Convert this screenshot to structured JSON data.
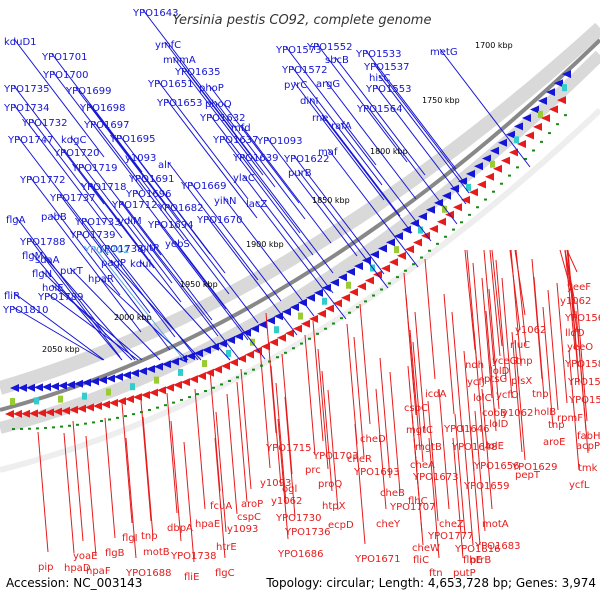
{
  "title": "Yersinia pestis CO92, complete genome",
  "footer": {
    "accession": "Accession: NC_003143",
    "summary": "Topology: circular; Length: 4,653,728 bp; Genes: 3,974"
  },
  "colors": {
    "plus_strand": "#1515d6",
    "minus_strand": "#e61b1b",
    "highlight": "#5aa7e6",
    "backbone": "#888888",
    "gc_dots": "#1a8a1a"
  },
  "ticks": [
    "1700 kbp",
    "1750 kbp",
    "1800 kbp",
    "1850 kbp",
    "1900 kbp",
    "1950 kbp",
    "2000 kbp",
    "2050 kbp"
  ],
  "genes": [
    {
      "name": "YPO1643",
      "strand": "plus"
    },
    {
      "name": "kduD1",
      "strand": "plus"
    },
    {
      "name": "ymfC",
      "strand": "plus"
    },
    {
      "name": "YPO1701",
      "strand": "plus"
    },
    {
      "name": "mnmA",
      "strand": "plus"
    },
    {
      "name": "YPO1573",
      "strand": "plus"
    },
    {
      "name": "YPO1552",
      "strand": "plus"
    },
    {
      "name": "YPO1533",
      "strand": "plus"
    },
    {
      "name": "metG",
      "strand": "plus"
    },
    {
      "name": "sbcB",
      "strand": "plus"
    },
    {
      "name": "YPO1537",
      "strand": "plus"
    },
    {
      "name": "YPO1700",
      "strand": "plus"
    },
    {
      "name": "YPO1635",
      "strand": "plus"
    },
    {
      "name": "YPO1572",
      "strand": "plus"
    },
    {
      "name": "hisC",
      "strand": "plus"
    },
    {
      "name": "YPO1735",
      "strand": "plus"
    },
    {
      "name": "YPO1699",
      "strand": "plus"
    },
    {
      "name": "YPO1651",
      "strand": "plus"
    },
    {
      "name": "phoP",
      "strand": "plus"
    },
    {
      "name": "pyrC",
      "strand": "plus"
    },
    {
      "name": "argG",
      "strand": "plus"
    },
    {
      "name": "YPO1553",
      "strand": "plus"
    },
    {
      "name": "dinI",
      "strand": "plus"
    },
    {
      "name": "YPO1734",
      "strand": "plus"
    },
    {
      "name": "YPO1698",
      "strand": "plus"
    },
    {
      "name": "YPO1653",
      "strand": "plus"
    },
    {
      "name": "phoQ",
      "strand": "plus"
    },
    {
      "name": "YPO1564",
      "strand": "plus"
    },
    {
      "name": "YPO1732",
      "strand": "plus"
    },
    {
      "name": "YPO1697",
      "strand": "plus"
    },
    {
      "name": "YPO1632",
      "strand": "plus"
    },
    {
      "name": "rne",
      "strand": "plus"
    },
    {
      "name": "rafA",
      "strand": "plus"
    },
    {
      "name": "YPO1747",
      "strand": "plus"
    },
    {
      "name": "kdgC",
      "strand": "plus"
    },
    {
      "name": "YPO1695",
      "strand": "plus"
    },
    {
      "name": "mfd",
      "strand": "plus"
    },
    {
      "name": "YPO1637",
      "strand": "plus"
    },
    {
      "name": "YPO1093",
      "strand": "plus"
    },
    {
      "name": "YPO1720",
      "strand": "plus"
    },
    {
      "name": "y1093",
      "strand": "plus"
    },
    {
      "name": "alr",
      "strand": "plus"
    },
    {
      "name": "YPO1639",
      "strand": "plus"
    },
    {
      "name": "YPO1622",
      "strand": "plus"
    },
    {
      "name": "maf",
      "strand": "plus"
    },
    {
      "name": "YPO1719",
      "strand": "plus"
    },
    {
      "name": "purB",
      "strand": "plus"
    },
    {
      "name": "YPO1772",
      "strand": "plus"
    },
    {
      "name": "YPO1718",
      "strand": "plus"
    },
    {
      "name": "YPO1691",
      "strand": "plus"
    },
    {
      "name": "YPO1669",
      "strand": "plus"
    },
    {
      "name": "YPO1737",
      "strand": "plus"
    },
    {
      "name": "YPO1696",
      "strand": "plus"
    },
    {
      "name": "ylaC",
      "strand": "plus"
    },
    {
      "name": "pabB",
      "strand": "plus"
    },
    {
      "name": "YPO1712",
      "strand": "plus"
    },
    {
      "name": "YPO1682",
      "strand": "plus"
    },
    {
      "name": "yihN",
      "strand": "plus"
    },
    {
      "name": "lacZ",
      "strand": "plus"
    },
    {
      "name": "flgA",
      "strand": "plus"
    },
    {
      "name": "YPO1733",
      "strand": "plus"
    },
    {
      "name": "ydiM",
      "strand": "plus"
    },
    {
      "name": "YPO1694",
      "strand": "plus"
    },
    {
      "name": "YPO1670",
      "strand": "plus"
    },
    {
      "name": "YPO1788",
      "strand": "plus"
    },
    {
      "name": "sdaA",
      "strand": "plus"
    },
    {
      "name": "YPO1739",
      "strand": "plus"
    },
    {
      "name": "YPO1702",
      "strand": "plus"
    },
    {
      "name": "YPO1738",
      "strand": "plus"
    },
    {
      "name": "flgM",
      "strand": "plus"
    },
    {
      "name": "gitP",
      "strand": "plus"
    },
    {
      "name": "yebS",
      "strand": "plus"
    },
    {
      "name": "pagP",
      "strand": "plus"
    },
    {
      "name": "kdul",
      "strand": "plus"
    },
    {
      "name": "flgN",
      "strand": "plus"
    },
    {
      "name": "purT",
      "strand": "plus"
    },
    {
      "name": "holE",
      "strand": "plus"
    },
    {
      "name": "hpaR",
      "strand": "plus"
    },
    {
      "name": "fliR",
      "strand": "plus"
    },
    {
      "name": "YPO1789",
      "strand": "plus"
    },
    {
      "name": "YPO1810",
      "strand": "plus"
    },
    {
      "name": "yeeF",
      "strand": "minus"
    },
    {
      "name": "y1062",
      "strand": "minus"
    },
    {
      "name": "YPO1568",
      "strand": "minus"
    },
    {
      "name": "y1062",
      "strand": "minus"
    },
    {
      "name": "lldD",
      "strand": "minus"
    },
    {
      "name": "rluC",
      "strand": "minus"
    },
    {
      "name": "yeeO",
      "strand": "minus"
    },
    {
      "name": "YPO1585",
      "strand": "minus"
    },
    {
      "name": "ndh",
      "strand": "minus"
    },
    {
      "name": "yceG",
      "strand": "minus"
    },
    {
      "name": "tnp",
      "strand": "minus"
    },
    {
      "name": "lolD",
      "strand": "minus"
    },
    {
      "name": "ptsG",
      "strand": "minus"
    },
    {
      "name": "plsX",
      "strand": "minus"
    },
    {
      "name": "YPO1588",
      "strand": "minus"
    },
    {
      "name": "ycfJ",
      "strand": "minus"
    },
    {
      "name": "ycfO",
      "strand": "minus"
    },
    {
      "name": "tnp",
      "strand": "minus"
    },
    {
      "name": "YPO1594",
      "strand": "minus"
    },
    {
      "name": "icdA",
      "strand": "minus"
    },
    {
      "name": "lolC",
      "strand": "minus"
    },
    {
      "name": "cobB",
      "strand": "minus"
    },
    {
      "name": "y1062",
      "strand": "minus"
    },
    {
      "name": "holB",
      "strand": "minus"
    },
    {
      "name": "rpmF",
      "strand": "minus"
    },
    {
      "name": "cspC",
      "strand": "minus"
    },
    {
      "name": "lolD",
      "strand": "minus"
    },
    {
      "name": "tnp",
      "strand": "minus"
    },
    {
      "name": "fabH",
      "strand": "minus"
    },
    {
      "name": "mgtC",
      "strand": "minus"
    },
    {
      "name": "YPO1646",
      "strand": "minus"
    },
    {
      "name": "lolE",
      "strand": "minus"
    },
    {
      "name": "aroE",
      "strand": "minus"
    },
    {
      "name": "acpP",
      "strand": "minus"
    },
    {
      "name": "cheD",
      "strand": "minus"
    },
    {
      "name": "mgtB",
      "strand": "minus"
    },
    {
      "name": "YPO1648",
      "strand": "minus"
    },
    {
      "name": "YPO1715",
      "strand": "minus"
    },
    {
      "name": "YPO1703",
      "strand": "minus"
    },
    {
      "name": "cheR",
      "strand": "minus"
    },
    {
      "name": "cheA",
      "strand": "minus"
    },
    {
      "name": "YPO1656",
      "strand": "minus"
    },
    {
      "name": "YPO1629",
      "strand": "minus"
    },
    {
      "name": "tmk",
      "strand": "minus"
    },
    {
      "name": "prc",
      "strand": "minus"
    },
    {
      "name": "YPO1693",
      "strand": "minus"
    },
    {
      "name": "YPO1673",
      "strand": "minus"
    },
    {
      "name": "pepT",
      "strand": "minus"
    },
    {
      "name": "y1093",
      "strand": "minus"
    },
    {
      "name": "ogl",
      "strand": "minus"
    },
    {
      "name": "proQ",
      "strand": "minus"
    },
    {
      "name": "cheB",
      "strand": "minus"
    },
    {
      "name": "YPO1659",
      "strand": "minus"
    },
    {
      "name": "ycfL",
      "strand": "minus"
    },
    {
      "name": "flhC",
      "strand": "minus"
    },
    {
      "name": "fcuA",
      "strand": "minus"
    },
    {
      "name": "aroP",
      "strand": "minus"
    },
    {
      "name": "y1062",
      "strand": "minus"
    },
    {
      "name": "htpX",
      "strand": "minus"
    },
    {
      "name": "YPO1707",
      "strand": "minus"
    },
    {
      "name": "cheY",
      "strand": "minus"
    },
    {
      "name": "cspC",
      "strand": "minus"
    },
    {
      "name": "YPO1730",
      "strand": "minus"
    },
    {
      "name": "motA",
      "strand": "minus"
    },
    {
      "name": "flgI",
      "strand": "minus"
    },
    {
      "name": "tnp",
      "strand": "minus"
    },
    {
      "name": "dbpA",
      "strand": "minus"
    },
    {
      "name": "hpaE",
      "strand": "minus"
    },
    {
      "name": "y1093",
      "strand": "minus"
    },
    {
      "name": "YPO1736",
      "strand": "minus"
    },
    {
      "name": "cheZ",
      "strand": "minus"
    },
    {
      "name": "ecpD",
      "strand": "minus"
    },
    {
      "name": "YPO1777",
      "strand": "minus"
    },
    {
      "name": "flgB",
      "strand": "minus"
    },
    {
      "name": "motB",
      "strand": "minus"
    },
    {
      "name": "YPO1683",
      "strand": "minus"
    },
    {
      "name": "cheW",
      "strand": "minus"
    },
    {
      "name": "YPO1816",
      "strand": "minus"
    },
    {
      "name": "ptrB",
      "strand": "minus"
    },
    {
      "name": "yoaE",
      "strand": "minus"
    },
    {
      "name": "YPO1738",
      "strand": "minus"
    },
    {
      "name": "htrE",
      "strand": "minus"
    },
    {
      "name": "YPO1686",
      "strand": "minus"
    },
    {
      "name": "YPO1671",
      "strand": "minus"
    },
    {
      "name": "putP",
      "strand": "minus"
    },
    {
      "name": "fliC",
      "strand": "minus"
    },
    {
      "name": "flhE",
      "strand": "minus"
    },
    {
      "name": "pip",
      "strand": "minus"
    },
    {
      "name": "hpaD",
      "strand": "minus"
    },
    {
      "name": "YPO1688",
      "strand": "minus"
    },
    {
      "name": "fliE",
      "strand": "minus"
    },
    {
      "name": "flgC",
      "strand": "minus"
    },
    {
      "name": "ftn",
      "strand": "minus"
    },
    {
      "name": "hpaF",
      "strand": "minus"
    }
  ]
}
